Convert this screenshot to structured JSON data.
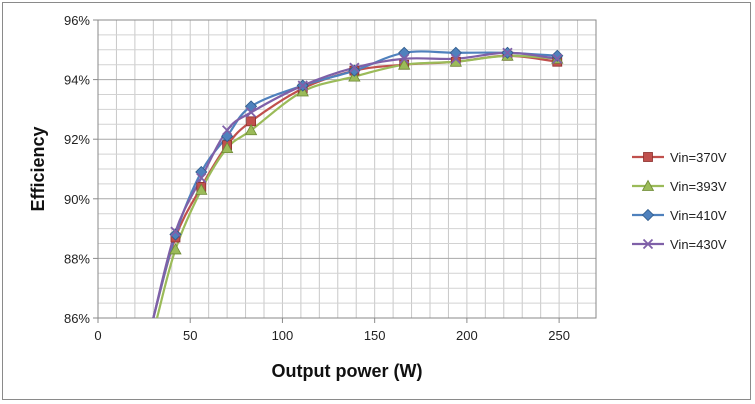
{
  "chart_data": {
    "type": "line",
    "xlabel": "Output power (W)",
    "ylabel": "Efficiency",
    "xlim": [
      0,
      270
    ],
    "ylim": [
      86,
      96
    ],
    "x_ticks": [
      0,
      50,
      100,
      150,
      200,
      250
    ],
    "y_ticks": [
      86,
      88,
      90,
      92,
      94,
      96
    ],
    "y_tick_labels": [
      "86%",
      "88%",
      "90%",
      "92%",
      "94%",
      "96%"
    ],
    "grid": true,
    "legend_position": "right",
    "series": [
      {
        "name": "Vin=370V",
        "color": "#c0504d",
        "marker": "square",
        "x": [
          30,
          42,
          56,
          70,
          83,
          111,
          139,
          166,
          194,
          222,
          249
        ],
        "y": [
          86.0,
          88.7,
          90.4,
          91.8,
          92.6,
          93.7,
          94.3,
          94.5,
          94.6,
          94.8,
          94.6
        ]
      },
      {
        "name": "Vin=393V",
        "color": "#9bbb59",
        "marker": "triangle",
        "x": [
          32,
          42,
          56,
          70,
          83,
          111,
          139,
          166,
          194,
          222,
          249
        ],
        "y": [
          86.0,
          88.3,
          90.3,
          91.7,
          92.3,
          93.6,
          94.1,
          94.5,
          94.6,
          94.8,
          94.7
        ]
      },
      {
        "name": "Vin=410V",
        "color": "#4f81bd",
        "marker": "diamond",
        "x": [
          30,
          42,
          56,
          70,
          83,
          111,
          139,
          166,
          194,
          222,
          249
        ],
        "y": [
          86.0,
          88.8,
          90.9,
          92.1,
          93.1,
          93.8,
          94.3,
          94.9,
          94.9,
          94.9,
          94.8
        ]
      },
      {
        "name": "Vin=430V",
        "color": "#7f60a8",
        "marker": "x",
        "x": [
          30,
          42,
          56,
          70,
          83,
          111,
          139,
          166,
          194,
          222,
          249
        ],
        "y": [
          86.0,
          88.9,
          90.7,
          92.3,
          92.9,
          93.8,
          94.4,
          94.7,
          94.7,
          94.9,
          94.7
        ]
      }
    ]
  }
}
